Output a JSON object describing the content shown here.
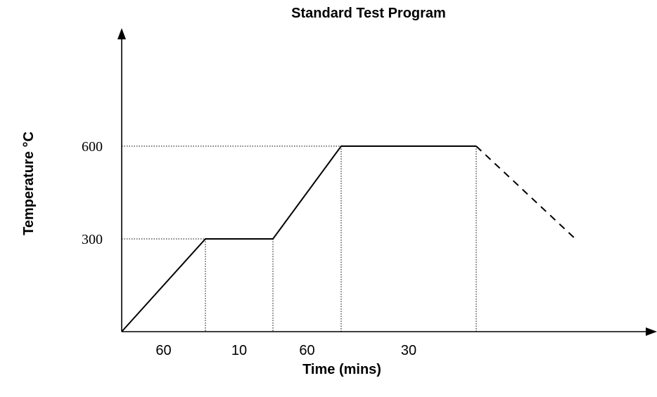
{
  "chart_data": {
    "type": "line",
    "title": "Standard Test Program",
    "xlabel": "Time (mins)",
    "ylabel": "Temperature °C",
    "ytick_labels": [
      "300",
      "600"
    ],
    "segments": [
      {
        "label": "60",
        "duration": 60,
        "start_temp": 0,
        "end_temp": 300
      },
      {
        "label": "10",
        "duration": 10,
        "start_temp": 300,
        "end_temp": 300
      },
      {
        "label": "60",
        "duration": 60,
        "start_temp": 300,
        "end_temp": 600
      },
      {
        "label": "30",
        "duration": 30,
        "start_temp": 600,
        "end_temp": 600
      }
    ],
    "cooldown": {
      "style": "dashed",
      "end_temp": 300
    },
    "guide_lines": {
      "style": "dotted"
    },
    "grid": false,
    "legend": "none"
  }
}
